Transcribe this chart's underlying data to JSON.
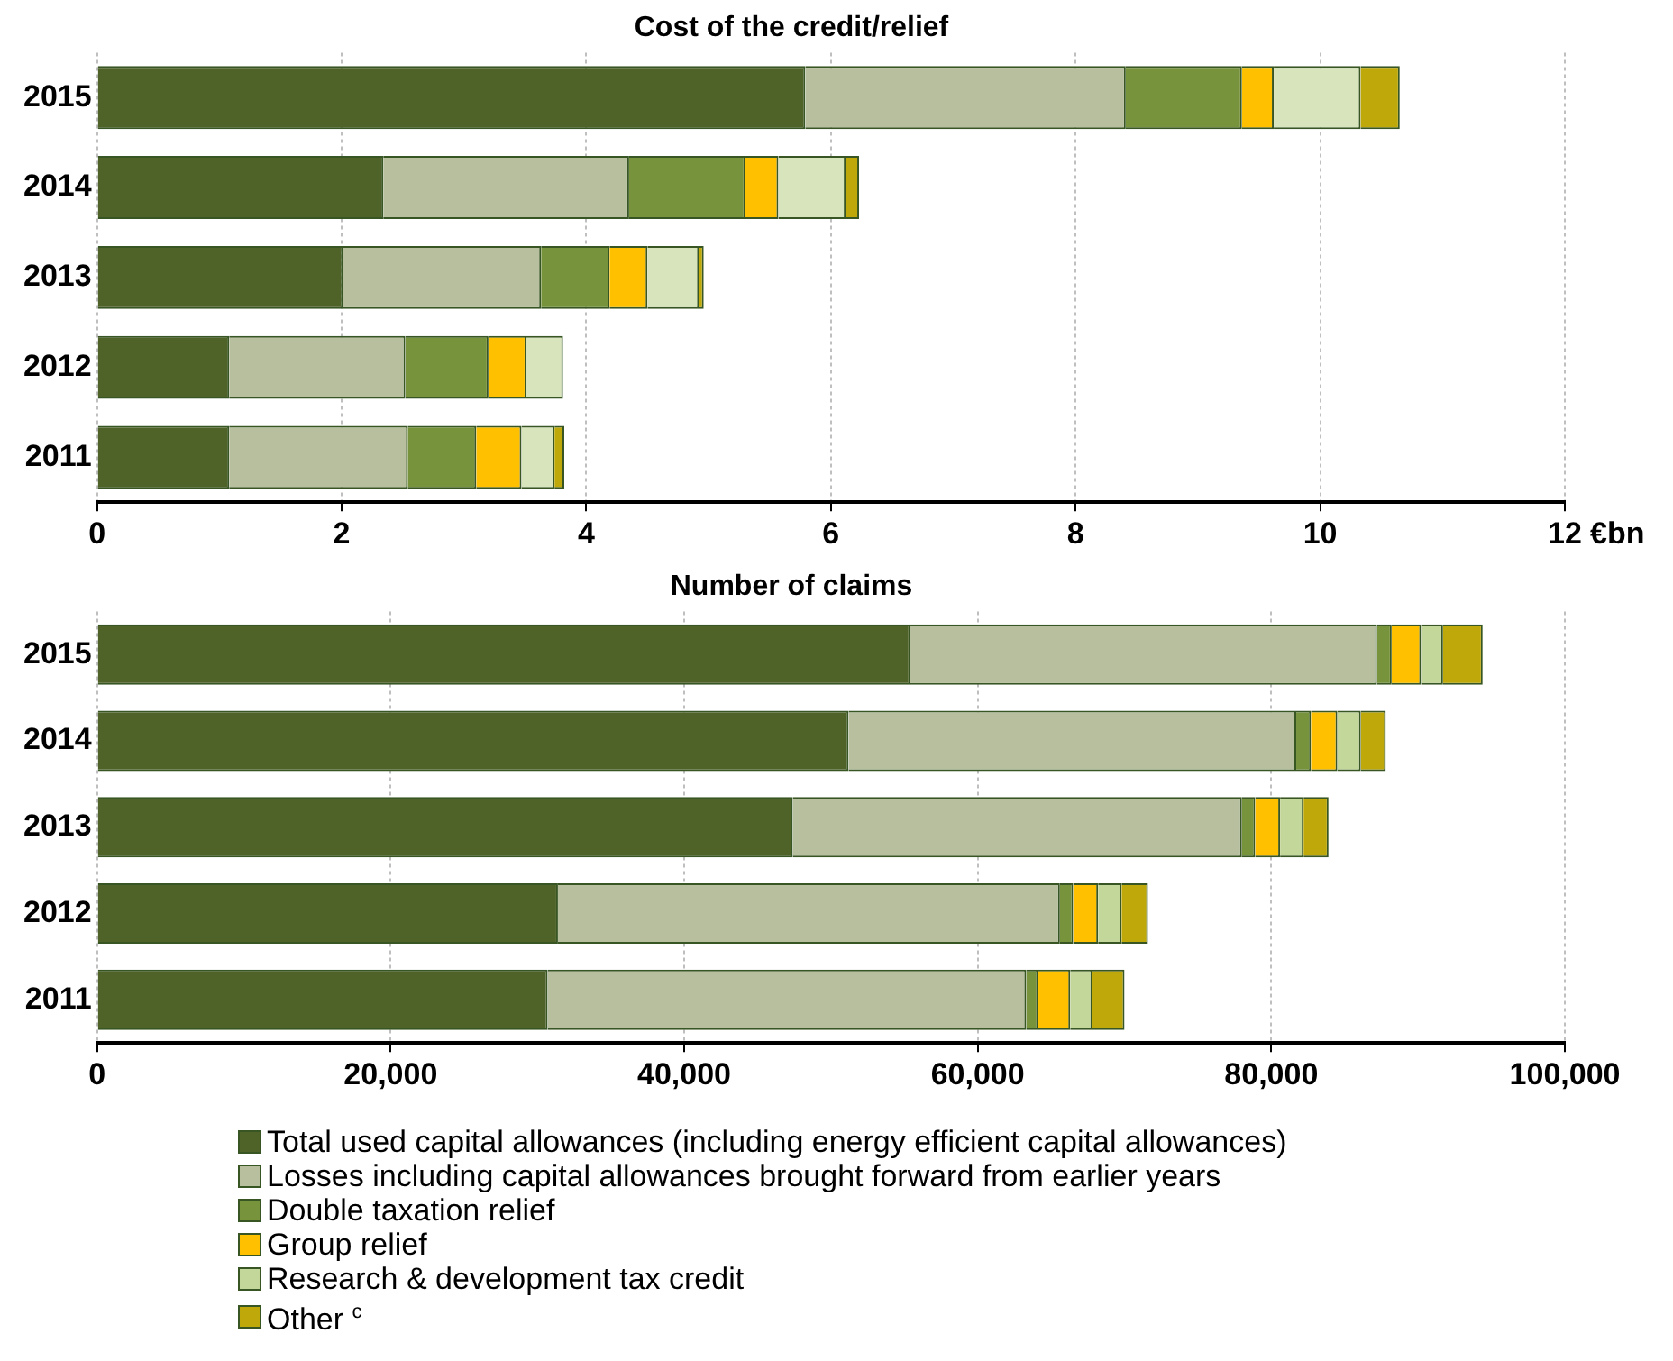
{
  "chart_data": [
    {
      "type": "bar",
      "orientation": "horizontal",
      "stacked": true,
      "title": "Cost of the credit/relief",
      "xlabel": "€bn",
      "categories": [
        "2015",
        "2014",
        "2013",
        "2012",
        "2011"
      ],
      "series": [
        {
          "color": "#4f6228",
          "values": [
            5.79,
            2.34,
            2.01,
            1.08,
            1.08
          ]
        },
        {
          "color": "#b7bf9e",
          "values": [
            2.62,
            2.01,
            1.62,
            1.44,
            1.46
          ]
        },
        {
          "color": "#77933c",
          "values": [
            0.95,
            0.95,
            0.56,
            0.68,
            0.56
          ]
        },
        {
          "color": "#ffc000",
          "values": [
            0.26,
            0.27,
            0.31,
            0.31,
            0.37
          ]
        },
        {
          "color": "#d8e4bc",
          "values": [
            0.71,
            0.55,
            0.42,
            0.3,
            0.27
          ]
        },
        {
          "color": "#bfa90a",
          "values": [
            0.32,
            0.11,
            0.04,
            0,
            0.08
          ]
        }
      ],
      "xlim": [
        0,
        12
      ],
      "xticks": [
        0,
        2,
        4,
        6,
        8,
        10,
        12
      ],
      "grid": "x",
      "legend": false
    },
    {
      "type": "bar",
      "orientation": "horizontal",
      "stacked": true,
      "title": "Number of claims",
      "categories": [
        "2015",
        "2014",
        "2013",
        "2012",
        "2011"
      ],
      "series": [
        {
          "name": "Total used capital allowances (including energy efficient capital allowances)",
          "color": "#4f6228",
          "values": [
            55400,
            51200,
            47400,
            31400,
            30700
          ]
        },
        {
          "name": "Losses including capital allowances brought forward from earlier years",
          "color": "#b7bf9e",
          "values": [
            31800,
            30500,
            30600,
            34200,
            32600
          ]
        },
        {
          "name": "Double taxation relief",
          "color": "#77933c",
          "values": [
            1000,
            1000,
            900,
            900,
            800
          ]
        },
        {
          "name": "Group relief",
          "color": "#ffc000",
          "values": [
            2000,
            1800,
            1700,
            1700,
            2200
          ]
        },
        {
          "name": "Research & development tax credit",
          "color": "#c4d79b",
          "values": [
            1500,
            1600,
            1600,
            1600,
            1500
          ]
        },
        {
          "name": "Other $^{c}$",
          "color": "#bfa90a",
          "values": [
            2700,
            1700,
            1700,
            1800,
            2200
          ]
        }
      ],
      "xlim": [
        0,
        100000
      ],
      "xticks": [
        {
          "value": 0,
          "label": "0"
        },
        {
          "value": 20000,
          "label": "20,000"
        },
        {
          "value": 40000,
          "label": "40,000"
        },
        {
          "value": 60000,
          "label": "60,000"
        },
        {
          "value": 80000,
          "label": "80,000"
        },
        {
          "value": 100000,
          "label": "100,000"
        }
      ],
      "grid": "x",
      "legend": "bottom"
    }
  ]
}
